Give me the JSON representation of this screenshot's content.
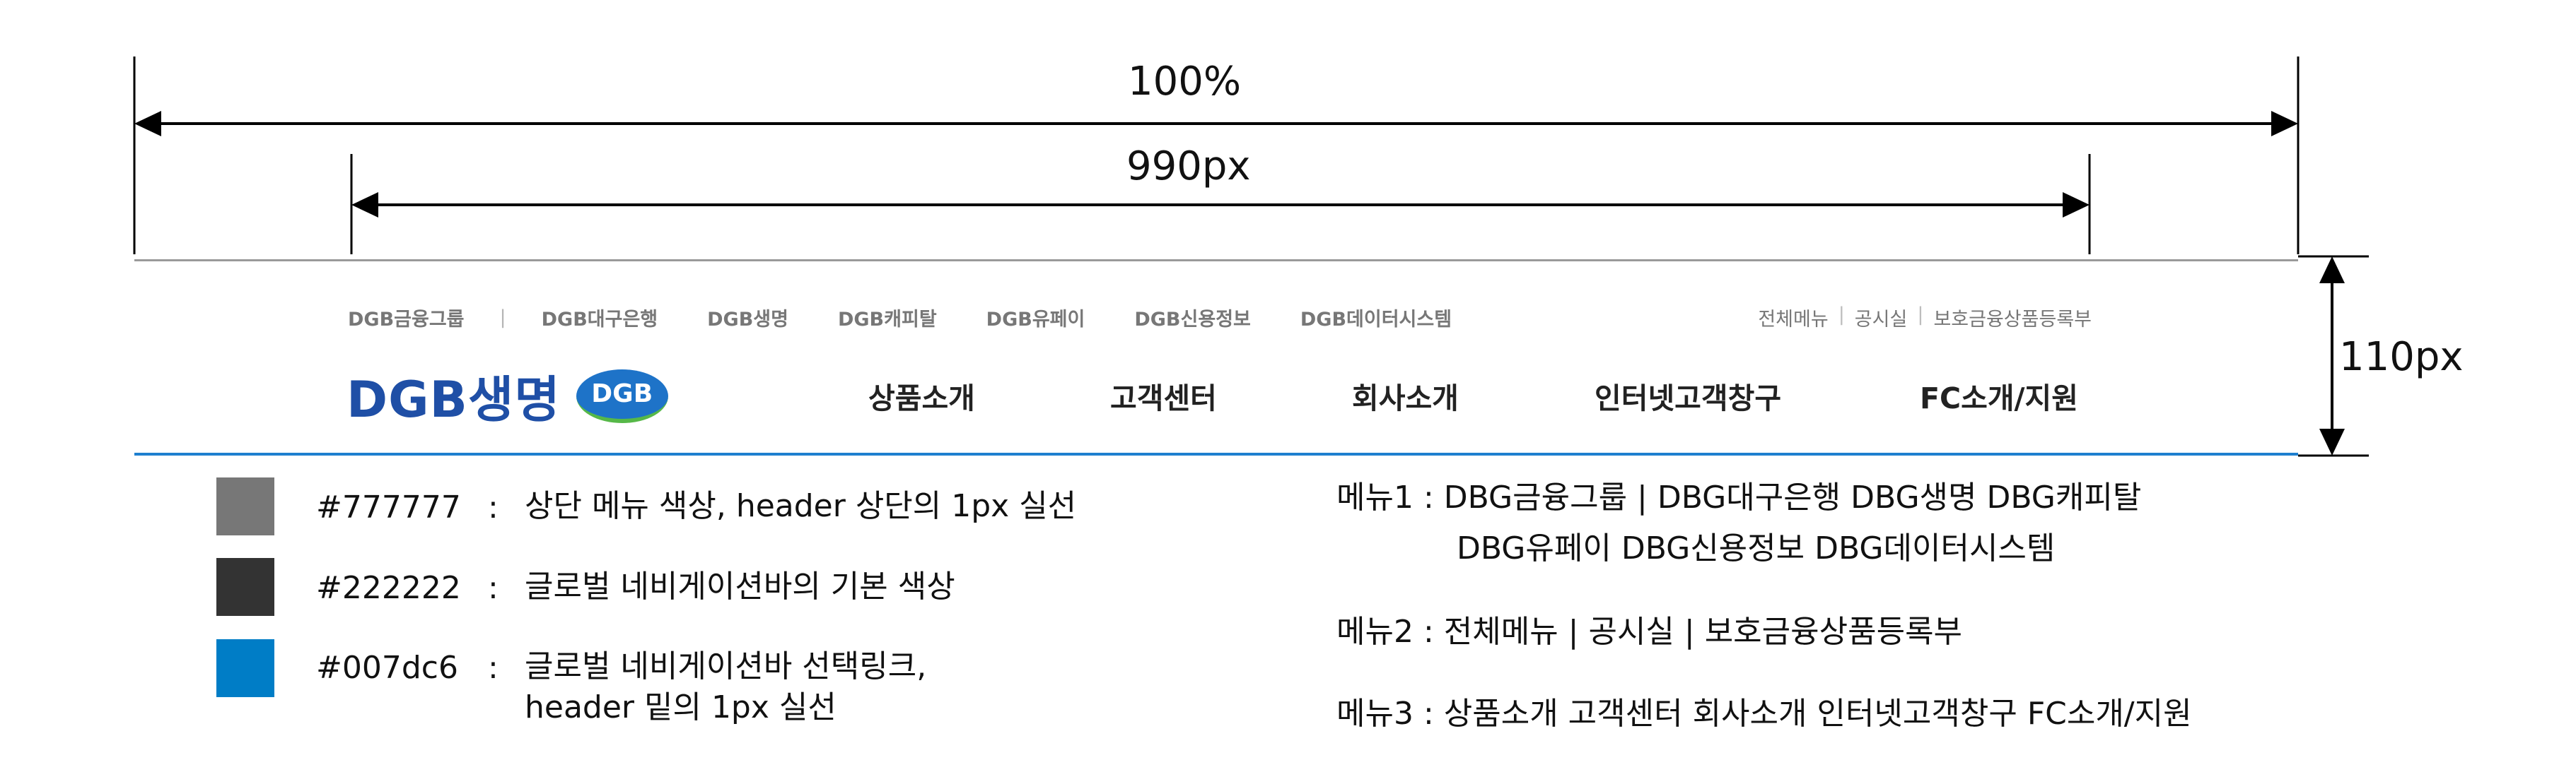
{
  "dimensions": {
    "full_width_label": "100%",
    "content_width_label": "990px",
    "header_height_label": "110px"
  },
  "header": {
    "family_links": [
      "DGB금융그룹",
      "DGB대구은행",
      "DGB생명",
      "DGB캐피탈",
      "DGB유페이",
      "DGB신용정보",
      "DGB데이터시스템"
    ],
    "util_links": [
      "전체메뉴",
      "공시실",
      "보호금융상품등록부"
    ],
    "logo_text": "DGB생명",
    "logo_badge": "DGB",
    "gnb": [
      "상품소개",
      "고객센터",
      "회사소개",
      "인터넷고객창구",
      "FC소개/지원"
    ]
  },
  "legend": [
    {
      "color": "#777777",
      "hex_label": "#777777",
      "desc": "상단 메뉴 색상, header 상단의 1px 실선"
    },
    {
      "color": "#222222",
      "hex_label": "#222222",
      "desc": "글로벌 네비게이션바의 기본 색상"
    },
    {
      "color": "#007dc6",
      "hex_label": "#007dc6",
      "desc": "글로벌 네비게이션바 선택링크,",
      "desc2": "header 밑의 1px 실선"
    }
  ],
  "menus": {
    "menu1_line1": "메뉴1 : DBG금융그룹 | DBG대구은행  DBG생명  DBG캐피탈",
    "menu1_line2": "DBG유페이  DBG신용정보  DBG데이터시스템",
    "menu2": "메뉴2 : 전체메뉴 | 공시실 | 보호금융상품등록부",
    "menu3": "메뉴3 : 상품소개  고객센터  회사소개  인터넷고객창구  FC소개/지원"
  }
}
